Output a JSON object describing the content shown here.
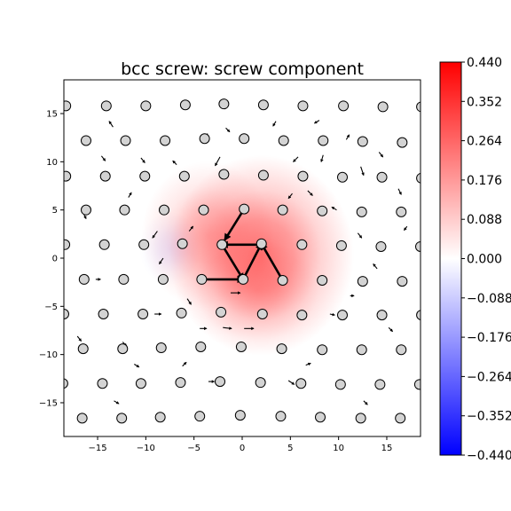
{
  "chart_data": {
    "type": "scatter",
    "title": "bcc screw: screw component",
    "xlabel": "",
    "ylabel": "",
    "xlim": [
      -18.5,
      18.5
    ],
    "ylim": [
      -18.5,
      18.5
    ],
    "xticks": [
      -15,
      -10,
      -5,
      0,
      5,
      10,
      15
    ],
    "yticks": [
      -15,
      -10,
      -5,
      0,
      5,
      10,
      15
    ],
    "grid": false,
    "colormap": {
      "name": "bwr",
      "low": "#0000ff",
      "mid": "#ffffff",
      "high": "#ff0000"
    },
    "colorbar": {
      "vmin": -0.44,
      "vmax": 0.44,
      "ticks": [
        "0.440",
        "0.352",
        "0.264",
        "0.176",
        "0.088",
        "0.000",
        "−0.088",
        "−0.176",
        "−0.264",
        "−0.352",
        "−0.440"
      ]
    },
    "atoms": [
      [
        -18.3,
        15.8
      ],
      [
        -14.1,
        15.8
      ],
      [
        -10,
        15.8
      ],
      [
        -5.9,
        15.9
      ],
      [
        -1.9,
        16
      ],
      [
        2.2,
        15.9
      ],
      [
        6.3,
        15.8
      ],
      [
        10.5,
        15.8
      ],
      [
        14.6,
        15.7
      ],
      [
        18.6,
        15.7
      ],
      [
        -16.2,
        12.2
      ],
      [
        -12.1,
        12.2
      ],
      [
        -8,
        12.2
      ],
      [
        -3.9,
        12.4
      ],
      [
        0.2,
        12.4
      ],
      [
        4.3,
        12.2
      ],
      [
        8.4,
        12.2
      ],
      [
        12.5,
        12.1
      ],
      [
        16.6,
        12
      ],
      [
        -18.3,
        8.5
      ],
      [
        -14.2,
        8.5
      ],
      [
        -10.1,
        8.5
      ],
      [
        -6,
        8.5
      ],
      [
        -1.9,
        8.7
      ],
      [
        2.2,
        8.6
      ],
      [
        6.3,
        8.5
      ],
      [
        10.4,
        8.4
      ],
      [
        14.5,
        8.4
      ],
      [
        18.6,
        8.3
      ],
      [
        -16.2,
        5
      ],
      [
        -12.2,
        5
      ],
      [
        -8.1,
        5
      ],
      [
        -4,
        5
      ],
      [
        0.2,
        5.1
      ],
      [
        4.2,
        5
      ],
      [
        8.3,
        4.9
      ],
      [
        12.4,
        4.8
      ],
      [
        16.5,
        4.8
      ],
      [
        -18.4,
        1.4
      ],
      [
        -14.3,
        1.4
      ],
      [
        -10.2,
        1.4
      ],
      [
        -6.2,
        1.5
      ],
      [
        -2.1,
        1.4
      ],
      [
        2,
        1.5
      ],
      [
        6.2,
        1.4
      ],
      [
        10.3,
        1.3
      ],
      [
        14.4,
        1.2
      ],
      [
        18.5,
        1.2
      ],
      [
        -16.4,
        -2.2
      ],
      [
        -12.3,
        -2.2
      ],
      [
        -8.2,
        -2.2
      ],
      [
        -4.2,
        -2.2
      ],
      [
        0.1,
        -2.2
      ],
      [
        4.2,
        -2.3
      ],
      [
        8.3,
        -2.3
      ],
      [
        12.5,
        -2.4
      ],
      [
        16.6,
        -2.4
      ],
      [
        -18.5,
        -5.8
      ],
      [
        -14.4,
        -5.8
      ],
      [
        -10.3,
        -5.8
      ],
      [
        -6.3,
        -5.7
      ],
      [
        -2.2,
        -5.6
      ],
      [
        2.1,
        -5.8
      ],
      [
        6.2,
        -5.9
      ],
      [
        10.4,
        -5.9
      ],
      [
        14.5,
        -5.9
      ],
      [
        18.6,
        -5.9
      ],
      [
        -16.5,
        -9.4
      ],
      [
        -12.4,
        -9.4
      ],
      [
        -8.4,
        -9.3
      ],
      [
        -4.3,
        -9.2
      ],
      [
        -0.1,
        -9.2
      ],
      [
        4.1,
        -9.4
      ],
      [
        8.3,
        -9.5
      ],
      [
        12.4,
        -9.5
      ],
      [
        16.5,
        -9.5
      ],
      [
        -18.6,
        -13
      ],
      [
        -14.5,
        -13
      ],
      [
        -10.5,
        -13
      ],
      [
        -6.4,
        -12.9
      ],
      [
        -2.3,
        -12.8
      ],
      [
        1.9,
        -12.9
      ],
      [
        6.1,
        -13
      ],
      [
        10.2,
        -13.1
      ],
      [
        14.3,
        -13.1
      ],
      [
        18.4,
        -13.1
      ],
      [
        -16.6,
        -16.6
      ],
      [
        -12.5,
        -16.6
      ],
      [
        -8.5,
        -16.5
      ],
      [
        -4.4,
        -16.4
      ],
      [
        -0.2,
        -16.3
      ],
      [
        4,
        -16.4
      ],
      [
        8.1,
        -16.5
      ],
      [
        12.3,
        -16.6
      ],
      [
        16.4,
        -16.6
      ]
    ],
    "arrows": [
      [
        0.2,
        5.1,
        -1.8,
        1.9
      ],
      [
        2,
        1.4,
        -2.1,
        1.4
      ],
      [
        -2.1,
        1.4,
        0.1,
        -2.2
      ],
      [
        0.1,
        -2.2,
        2,
        1.5
      ],
      [
        4.2,
        -2.3,
        2,
        1.5
      ],
      [
        -4.2,
        -2.2,
        0.1,
        -2.2
      ],
      [
        -2.3,
        10.5,
        -2.8,
        9.6
      ],
      [
        -8.8,
        2.8,
        -9.3,
        2.1
      ],
      [
        -3.9,
        12.5,
        -3.6,
        12.9
      ],
      [
        -13.4,
        13.6,
        -13.8,
        14.2
      ],
      [
        12.3,
        9.5,
        12.6,
        8.6
      ],
      [
        8.4,
        10.7,
        8.2,
        10
      ],
      [
        6.8,
        7,
        7.3,
        6.5
      ],
      [
        5.2,
        6.7,
        4.8,
        6.2
      ],
      [
        -5.5,
        2.8,
        -5.1,
        3.3
      ],
      [
        -8.2,
        0,
        -8.6,
        -0.6
      ],
      [
        -5.7,
        -4.2,
        -5.3,
        -4.8
      ],
      [
        -4.4,
        -7.3,
        -3.7,
        -7.3
      ],
      [
        -2,
        -7.2,
        -1.1,
        -7.3
      ],
      [
        0.2,
        -7.3,
        1.2,
        -7.3
      ],
      [
        -1.2,
        -3.6,
        -0.2,
        -3.6
      ],
      [
        3.6,
        -9.3,
        3.9,
        -9.3
      ],
      [
        -9.1,
        -5.8,
        -8.4,
        -5.8
      ],
      [
        9.1,
        -5.8,
        9.6,
        -5.9
      ],
      [
        11.2,
        -3.9,
        11.6,
        -3.9
      ],
      [
        -3.5,
        -12.8,
        -2.9,
        -12.8
      ],
      [
        4.8,
        -12.7,
        5.4,
        -13.1
      ],
      [
        -11.2,
        -11,
        -10.7,
        -11.3
      ],
      [
        9.8,
        5,
        9.3,
        5.3
      ],
      [
        -12.4,
        -8.7,
        -12,
        -9.1
      ],
      [
        12,
        2.6,
        12.4,
        2.1
      ],
      [
        14,
        -1.1,
        13.6,
        -0.6
      ],
      [
        -15.2,
        -2.2,
        -14.7,
        -2.2
      ],
      [
        -16.5,
        4.7,
        -16.2,
        4.1
      ],
      [
        16.2,
        7.2,
        16.5,
        6.6
      ],
      [
        -10.5,
        10.4,
        -10.1,
        9.9
      ],
      [
        3.5,
        14.2,
        3.2,
        13.7
      ],
      [
        -1.7,
        13.5,
        -1.3,
        13.1
      ],
      [
        8,
        14.3,
        7.5,
        14
      ],
      [
        14.2,
        11,
        14.6,
        10.5
      ],
      [
        5.8,
        10.5,
        5.3,
        10
      ],
      [
        -6.8,
        9.7,
        -7.2,
        10.1
      ],
      [
        -11.8,
        6.3,
        -11.5,
        6.8
      ],
      [
        10.8,
        12.3,
        11.1,
        12.8
      ],
      [
        -14.6,
        10.6,
        -14.2,
        10.1
      ],
      [
        17.1,
        3.3,
        16.8,
        2.9
      ],
      [
        -17.1,
        -8.1,
        -16.7,
        -8.6
      ],
      [
        15.2,
        -7.2,
        15.6,
        -7.6
      ],
      [
        -6.2,
        -11.2,
        -5.8,
        -10.8
      ],
      [
        6.6,
        -11.1,
        7.1,
        -10.9
      ],
      [
        -13.3,
        -14.8,
        -12.8,
        -15.1
      ],
      [
        12.6,
        -14.8,
        13,
        -15.2
      ]
    ],
    "field": [
      {
        "x": 2.0,
        "y": 0.3,
        "sx": 6.0,
        "sy": 6.5,
        "amp": 0.24
      },
      {
        "x": -3.6,
        "y": 2.4,
        "sx": 4.3,
        "sy": 4.8,
        "amp": 0.12
      },
      {
        "x": 1.5,
        "y": -3.3,
        "sx": 4.0,
        "sy": 3.3,
        "amp": 0.08
      },
      {
        "x": -7.5,
        "y": 1.0,
        "sx": 2.0,
        "sy": 2.4,
        "amp": -0.035
      }
    ]
  }
}
